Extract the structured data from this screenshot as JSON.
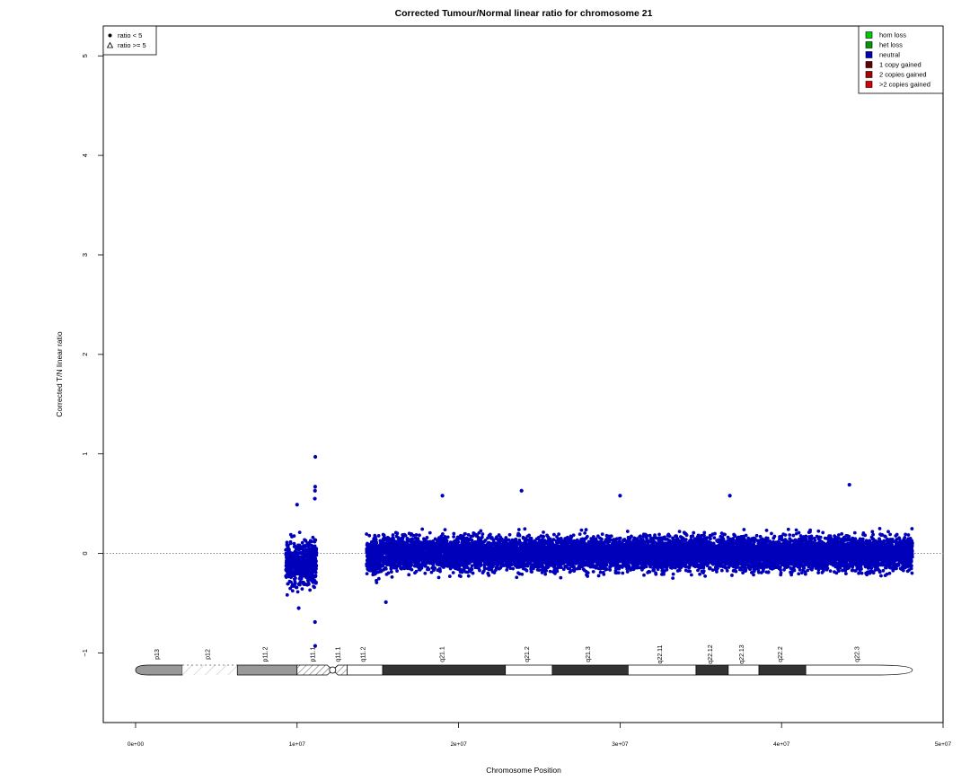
{
  "chart_data": {
    "type": "scatter",
    "title": "Corrected Tumour/Normal linear ratio for chromosome  21",
    "xlabel": "Chromosome Position",
    "ylabel": "Corrected T/N linear ratio",
    "xlim": [
      -2000000,
      50000000
    ],
    "ylim": [
      -1.7,
      5.3
    ],
    "x_ticks": [
      {
        "value": 0,
        "label": "0e+00"
      },
      {
        "value": 10000000,
        "label": "1e+07"
      },
      {
        "value": 20000000,
        "label": "2e+07"
      },
      {
        "value": 30000000,
        "label": "3e+07"
      },
      {
        "value": 40000000,
        "label": "4e+07"
      },
      {
        "value": 50000000,
        "label": "5e+07"
      }
    ],
    "y_ticks": [
      {
        "value": -1,
        "label": "−1"
      },
      {
        "value": 0,
        "label": "0"
      },
      {
        "value": 1,
        "label": "1"
      },
      {
        "value": 2,
        "label": "2"
      },
      {
        "value": 3,
        "label": "3"
      },
      {
        "value": 4,
        "label": "4"
      },
      {
        "value": 5,
        "label": "5"
      }
    ],
    "reference_line": 0,
    "series": [
      {
        "name": "neutral",
        "color": "#0000bb",
        "marker": "circle",
        "segments": [
          {
            "x_range": [
              9300000,
              11200000
            ],
            "center": -0.1,
            "spread": 0.18
          },
          {
            "x_range": [
              14300000,
              15200000
            ],
            "center": -0.05,
            "spread": 0.15
          },
          {
            "x_range": [
              15200000,
              48100000
            ],
            "center": 0.0,
            "spread": 0.13
          }
        ],
        "notable_points": [
          {
            "x": 11130000,
            "y": 0.97
          },
          {
            "x": 11120000,
            "y": 0.67
          },
          {
            "x": 11110000,
            "y": 0.63
          },
          {
            "x": 11100000,
            "y": 0.55
          },
          {
            "x": 11110000,
            "y": -0.69
          },
          {
            "x": 11120000,
            "y": -0.93
          },
          {
            "x": 10000000,
            "y": 0.49
          },
          {
            "x": 10100000,
            "y": -0.55
          },
          {
            "x": 23900000,
            "y": 0.63
          },
          {
            "x": 44200000,
            "y": 0.69
          },
          {
            "x": 19000000,
            "y": 0.58
          },
          {
            "x": 30000000,
            "y": 0.58
          },
          {
            "x": 36800000,
            "y": 0.58
          },
          {
            "x": 15500000,
            "y": -0.49
          }
        ]
      }
    ],
    "legend_shapes": {
      "position": "top-left",
      "entries": [
        {
          "label": "ratio < 5",
          "symbol": "filled-circle"
        },
        {
          "label": "ratio >= 5",
          "symbol": "open-triangle"
        }
      ]
    },
    "legend_status": {
      "position": "top-right",
      "entries": [
        {
          "label": "hom loss",
          "color": "#00cc00"
        },
        {
          "label": "het loss",
          "color": "#009900"
        },
        {
          "label": "neutral",
          "color": "#0000bb"
        },
        {
          "label": "1 copy gained",
          "color": "#660000"
        },
        {
          "label": "2 copies gained",
          "color": "#aa0000"
        },
        {
          "label": ">2 copies gained",
          "color": "#dd0000"
        }
      ]
    },
    "ideogram": {
      "bands": [
        {
          "name": "p13",
          "start": 0,
          "end": 2900000,
          "fill": "#999999",
          "pattern": "solid"
        },
        {
          "name": "p12",
          "start": 2900000,
          "end": 6300000,
          "fill": "#ffffff",
          "pattern": "stalk"
        },
        {
          "name": "p11.2",
          "start": 6300000,
          "end": 10000000,
          "fill": "#999999",
          "pattern": "solid"
        },
        {
          "name": "p11.1",
          "start": 10000000,
          "end": 12200000,
          "fill": "#ffffff",
          "pattern": "hatch"
        },
        {
          "name": "q11.1",
          "start": 12200000,
          "end": 13100000,
          "fill": "#ffffff",
          "pattern": "hatch"
        },
        {
          "name": "q11.2",
          "start": 13100000,
          "end": 15300000,
          "fill": "#ffffff",
          "pattern": "solid"
        },
        {
          "name": "q21.1",
          "start": 15300000,
          "end": 22900000,
          "fill": "#333333",
          "pattern": "solid"
        },
        {
          "name": "q21.2",
          "start": 22900000,
          "end": 25800000,
          "fill": "#ffffff",
          "pattern": "solid"
        },
        {
          "name": "q21.3",
          "start": 25800000,
          "end": 30500000,
          "fill": "#333333",
          "pattern": "solid"
        },
        {
          "name": "q22.11",
          "start": 30500000,
          "end": 34700000,
          "fill": "#ffffff",
          "pattern": "solid"
        },
        {
          "name": "q22.12",
          "start": 34700000,
          "end": 36700000,
          "fill": "#333333",
          "pattern": "solid"
        },
        {
          "name": "q22.13",
          "start": 36700000,
          "end": 38600000,
          "fill": "#ffffff",
          "pattern": "solid"
        },
        {
          "name": "q22.2",
          "start": 38600000,
          "end": 41500000,
          "fill": "#333333",
          "pattern": "solid"
        },
        {
          "name": "q22.3",
          "start": 41500000,
          "end": 48100000,
          "fill": "#ffffff",
          "pattern": "solid"
        }
      ]
    }
  }
}
